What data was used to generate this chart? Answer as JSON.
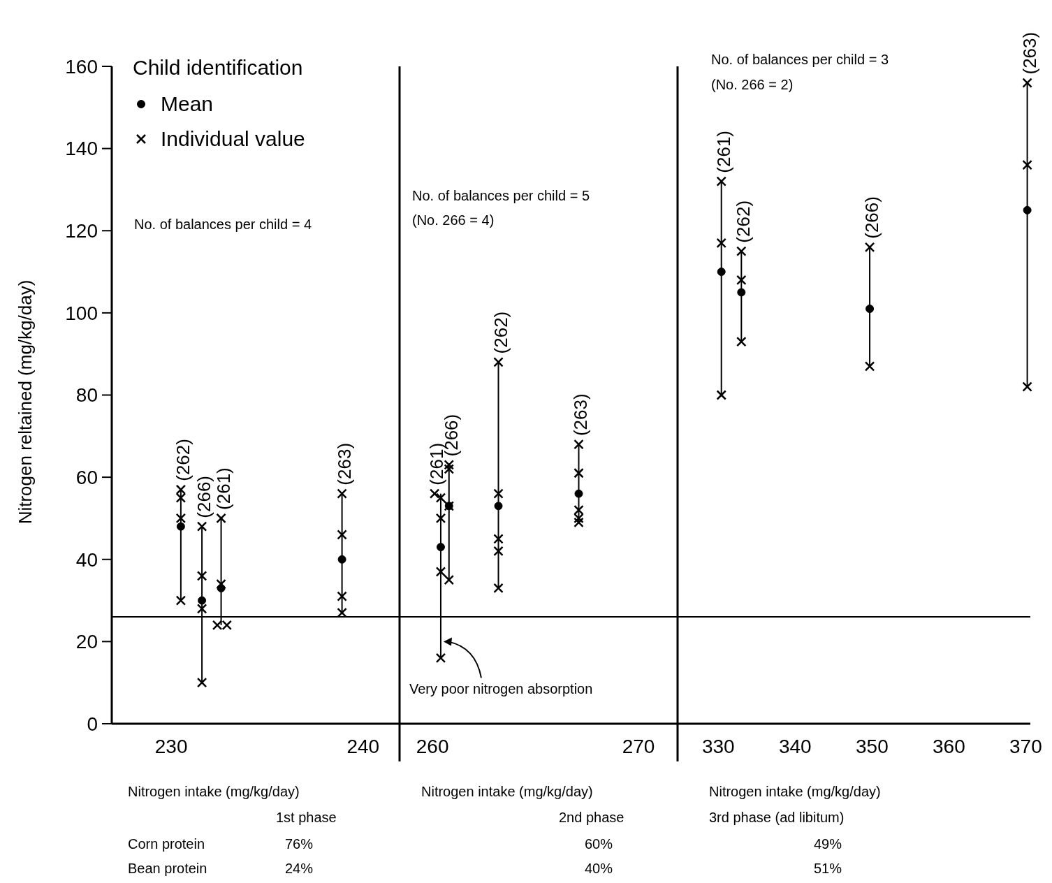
{
  "chart_data": [
    {
      "type": "scatter",
      "xlim": [
        226.9,
        241.9
      ],
      "xticks": [
        230,
        240
      ],
      "ylim": [
        0,
        160
      ],
      "yticks": [
        0,
        20,
        40,
        60,
        80,
        100,
        120,
        140,
        160
      ],
      "xlabel": "Nitrogen intake (mg/kg/day)",
      "ylabel": "Nitrogen reltained (mg/kg/day)",
      "legend_title": "Child identification",
      "legend": "top left",
      "series": [
        {
          "name": "Mean",
          "marker": "circle",
          "color": "#000000",
          "x": [
            230.5,
            231.6,
            232.6,
            238.9
          ],
          "values": [
            48,
            30,
            33,
            40
          ],
          "errors": [
            [
              30,
              57
            ],
            [
              10,
              48
            ],
            [
              24,
              50
            ],
            [
              27,
              56
            ]
          ]
        },
        {
          "name": "Individual value",
          "marker": "cross",
          "color": "#000000",
          "x": [
            230.5,
            230.5,
            230.5,
            230.5,
            231.6,
            231.6,
            231.6,
            231.6,
            232.6,
            232.6,
            232.4,
            232.9,
            238.9,
            238.9,
            238.9,
            238.9
          ],
          "values": [
            57,
            55,
            50,
            30,
            48,
            36,
            28,
            10,
            50,
            34,
            24,
            24,
            56,
            46,
            31,
            27
          ]
        }
      ],
      "ref_lines": [
        {
          "axis": "y",
          "value": 26
        }
      ],
      "annotations": [
        "No. of balances per child = 4",
        "1st phase",
        "Corn protein",
        "76%",
        "Bean protein",
        "24%",
        {
          "text": "(262)",
          "x": 230.5,
          "y": 57
        },
        {
          "text": "(266)",
          "x": 231.6,
          "y": 48
        },
        {
          "text": "(261)",
          "x": 232.6,
          "y": 50
        },
        {
          "text": "(263)",
          "x": 238.9,
          "y": 56
        }
      ]
    },
    {
      "type": "scatter",
      "xlim": [
        258.4,
        271.9
      ],
      "xticks": [
        260,
        270
      ],
      "ylim": [
        0,
        160
      ],
      "tick_labels": "x",
      "xlabel": "Nitrogen intake (mg/kg/day)",
      "legend": false,
      "series": [
        {
          "marker": "circle",
          "color": "#000000",
          "x": [
            260.4,
            260.8,
            263.2,
            267.1
          ],
          "values": [
            43,
            53,
            53,
            56
          ],
          "errors": [
            [
              16,
              56
            ],
            [
              35,
              63
            ],
            [
              33,
              88
            ],
            [
              49,
              68
            ]
          ]
        },
        {
          "marker": "cross",
          "color": "#000000",
          "x": [
            260.1,
            260.4,
            260.4,
            260.4,
            260.4,
            260.8,
            260.8,
            260.8,
            260.8,
            263.2,
            263.2,
            263.2,
            263.2,
            263.2,
            267.1,
            267.1,
            267.1,
            267.1,
            267.1
          ],
          "values": [
            56,
            55,
            50,
            37,
            16,
            63,
            62,
            53,
            35,
            88,
            56,
            45,
            42,
            33,
            68,
            61,
            52,
            50,
            49
          ]
        }
      ],
      "ref_lines": [
        {
          "axis": "y",
          "value": 26
        }
      ],
      "annotations": [
        "No. of balances per child = 5",
        "(No. 266 = 4)",
        "2nd phase",
        "60%",
        "40%",
        {
          "text": "(261)",
          "x": 260.1,
          "y": 56
        },
        {
          "text": "(266)",
          "x": 260.8,
          "y": 63
        },
        {
          "text": "(262)",
          "x": 263.2,
          "y": 88
        },
        {
          "text": "(263)",
          "x": 267.1,
          "y": 68
        },
        {
          "text": "Very poor nitrogen absorption",
          "x": 260.4,
          "y": 20
        }
      ]
    },
    {
      "type": "scatter",
      "xlim": [
        324.7,
        370.6
      ],
      "xticks": [
        330,
        340,
        350,
        360,
        370
      ],
      "ylim": [
        0,
        160
      ],
      "tick_labels": "x",
      "xlabel": "Nitrogen intake (mg/kg/day)",
      "legend": false,
      "series": [
        {
          "marker": "circle",
          "color": "#000000",
          "x": [
            330.4,
            333,
            349.7,
            370.2
          ],
          "values": [
            110,
            105,
            101,
            125
          ],
          "errors": [
            [
              80,
              132
            ],
            [
              93,
              115
            ],
            [
              87,
              116
            ],
            [
              82,
              156
            ]
          ]
        },
        {
          "marker": "cross",
          "color": "#000000",
          "x": [
            330.4,
            330.4,
            330.4,
            333,
            333,
            333,
            349.7,
            349.7,
            370.2,
            370.2,
            370.2
          ],
          "values": [
            132,
            117,
            80,
            115,
            108,
            93,
            116,
            87,
            156,
            136,
            82
          ]
        }
      ],
      "ref_lines": [
        {
          "axis": "y",
          "value": 26
        }
      ],
      "annotations": [
        "No. of balances per child = 3",
        "(No. 266 = 2)",
        "3rd phase (ad libitum)",
        "49%",
        "51%",
        {
          "text": "(261)",
          "x": 330.4,
          "y": 132
        },
        {
          "text": "(262)",
          "x": 333,
          "y": 115
        },
        {
          "text": "(266)",
          "x": 349.7,
          "y": 116
        },
        {
          "text": "(263)",
          "x": 370.2,
          "y": 156
        }
      ]
    }
  ]
}
